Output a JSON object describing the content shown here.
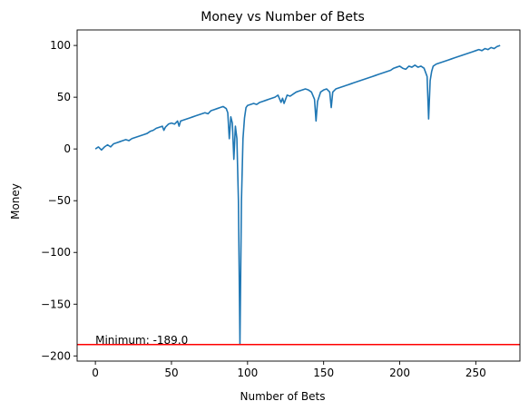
{
  "chart_data": {
    "type": "line",
    "title": "Money vs Number of Bets",
    "xlabel": "Number of Bets",
    "ylabel": "Money",
    "xlim": [
      -12,
      279
    ],
    "ylim": [
      -205,
      115
    ],
    "xticks": [
      0,
      50,
      100,
      150,
      200,
      250
    ],
    "yticks": [
      -200,
      -150,
      -100,
      -50,
      0,
      50,
      100
    ],
    "xtick_labels": [
      "0",
      "50",
      "100",
      "150",
      "200",
      "250"
    ],
    "ytick_labels": [
      "−200",
      "−150",
      "−100",
      "−50",
      "0",
      "50",
      "100"
    ],
    "grid": false,
    "series": [
      {
        "color": "#1f77b4",
        "points": [
          [
            0,
            0
          ],
          [
            2,
            2
          ],
          [
            4,
            -1
          ],
          [
            6,
            2
          ],
          [
            8,
            4
          ],
          [
            10,
            2
          ],
          [
            12,
            5
          ],
          [
            14,
            6
          ],
          [
            16,
            7
          ],
          [
            18,
            8
          ],
          [
            20,
            9
          ],
          [
            22,
            8
          ],
          [
            24,
            10
          ],
          [
            26,
            11
          ],
          [
            28,
            12
          ],
          [
            30,
            13
          ],
          [
            32,
            14
          ],
          [
            34,
            15
          ],
          [
            36,
            17
          ],
          [
            38,
            18
          ],
          [
            40,
            20
          ],
          [
            42,
            21
          ],
          [
            44,
            22
          ],
          [
            45,
            18
          ],
          [
            46,
            21
          ],
          [
            48,
            24
          ],
          [
            50,
            25
          ],
          [
            52,
            24
          ],
          [
            54,
            27
          ],
          [
            55,
            22
          ],
          [
            56,
            27
          ],
          [
            58,
            28
          ],
          [
            60,
            29
          ],
          [
            62,
            30
          ],
          [
            64,
            31
          ],
          [
            66,
            32
          ],
          [
            68,
            33
          ],
          [
            70,
            34
          ],
          [
            72,
            35
          ],
          [
            74,
            34
          ],
          [
            76,
            37
          ],
          [
            78,
            38
          ],
          [
            80,
            39
          ],
          [
            82,
            40
          ],
          [
            84,
            41
          ],
          [
            86,
            39
          ],
          [
            87,
            35
          ],
          [
            88,
            10
          ],
          [
            89,
            31
          ],
          [
            90,
            25
          ],
          [
            91,
            -10
          ],
          [
            92,
            22
          ],
          [
            93,
            10
          ],
          [
            94,
            -50
          ],
          [
            95,
            -189
          ],
          [
            96,
            -50
          ],
          [
            97,
            10
          ],
          [
            98,
            30
          ],
          [
            99,
            40
          ],
          [
            100,
            42
          ],
          [
            102,
            43
          ],
          [
            104,
            44
          ],
          [
            106,
            43
          ],
          [
            108,
            45
          ],
          [
            110,
            46
          ],
          [
            112,
            47
          ],
          [
            114,
            48
          ],
          [
            116,
            49
          ],
          [
            118,
            50
          ],
          [
            120,
            52
          ],
          [
            122,
            45
          ],
          [
            123,
            49
          ],
          [
            124,
            44
          ],
          [
            126,
            52
          ],
          [
            128,
            51
          ],
          [
            130,
            53
          ],
          [
            132,
            55
          ],
          [
            134,
            56
          ],
          [
            136,
            57
          ],
          [
            138,
            58
          ],
          [
            140,
            57
          ],
          [
            142,
            55
          ],
          [
            144,
            48
          ],
          [
            145,
            27
          ],
          [
            146,
            46
          ],
          [
            148,
            55
          ],
          [
            150,
            57
          ],
          [
            152,
            58
          ],
          [
            154,
            55
          ],
          [
            155,
            40
          ],
          [
            156,
            55
          ],
          [
            158,
            58
          ],
          [
            160,
            59
          ],
          [
            162,
            60
          ],
          [
            164,
            61
          ],
          [
            166,
            62
          ],
          [
            168,
            63
          ],
          [
            170,
            64
          ],
          [
            172,
            65
          ],
          [
            174,
            66
          ],
          [
            176,
            67
          ],
          [
            178,
            68
          ],
          [
            180,
            69
          ],
          [
            182,
            70
          ],
          [
            184,
            71
          ],
          [
            186,
            72
          ],
          [
            188,
            73
          ],
          [
            190,
            74
          ],
          [
            192,
            75
          ],
          [
            194,
            76
          ],
          [
            196,
            78
          ],
          [
            198,
            79
          ],
          [
            200,
            80
          ],
          [
            202,
            78
          ],
          [
            204,
            77
          ],
          [
            206,
            80
          ],
          [
            208,
            79
          ],
          [
            210,
            81
          ],
          [
            212,
            79
          ],
          [
            214,
            80
          ],
          [
            216,
            78
          ],
          [
            218,
            70
          ],
          [
            219,
            29
          ],
          [
            220,
            66
          ],
          [
            221,
            75
          ],
          [
            222,
            80
          ],
          [
            224,
            82
          ],
          [
            226,
            83
          ],
          [
            228,
            84
          ],
          [
            230,
            85
          ],
          [
            232,
            86
          ],
          [
            234,
            87
          ],
          [
            236,
            88
          ],
          [
            238,
            89
          ],
          [
            240,
            90
          ],
          [
            242,
            91
          ],
          [
            244,
            92
          ],
          [
            246,
            93
          ],
          [
            248,
            94
          ],
          [
            250,
            95
          ],
          [
            252,
            96
          ],
          [
            254,
            95
          ],
          [
            256,
            97
          ],
          [
            258,
            96
          ],
          [
            260,
            98
          ],
          [
            262,
            97
          ],
          [
            264,
            99
          ],
          [
            266,
            100
          ]
        ]
      }
    ],
    "hline": {
      "y": -189,
      "color": "#ff0000"
    },
    "annotation": {
      "text": "Minimum: -189.0",
      "x": 0,
      "y": -189
    }
  }
}
